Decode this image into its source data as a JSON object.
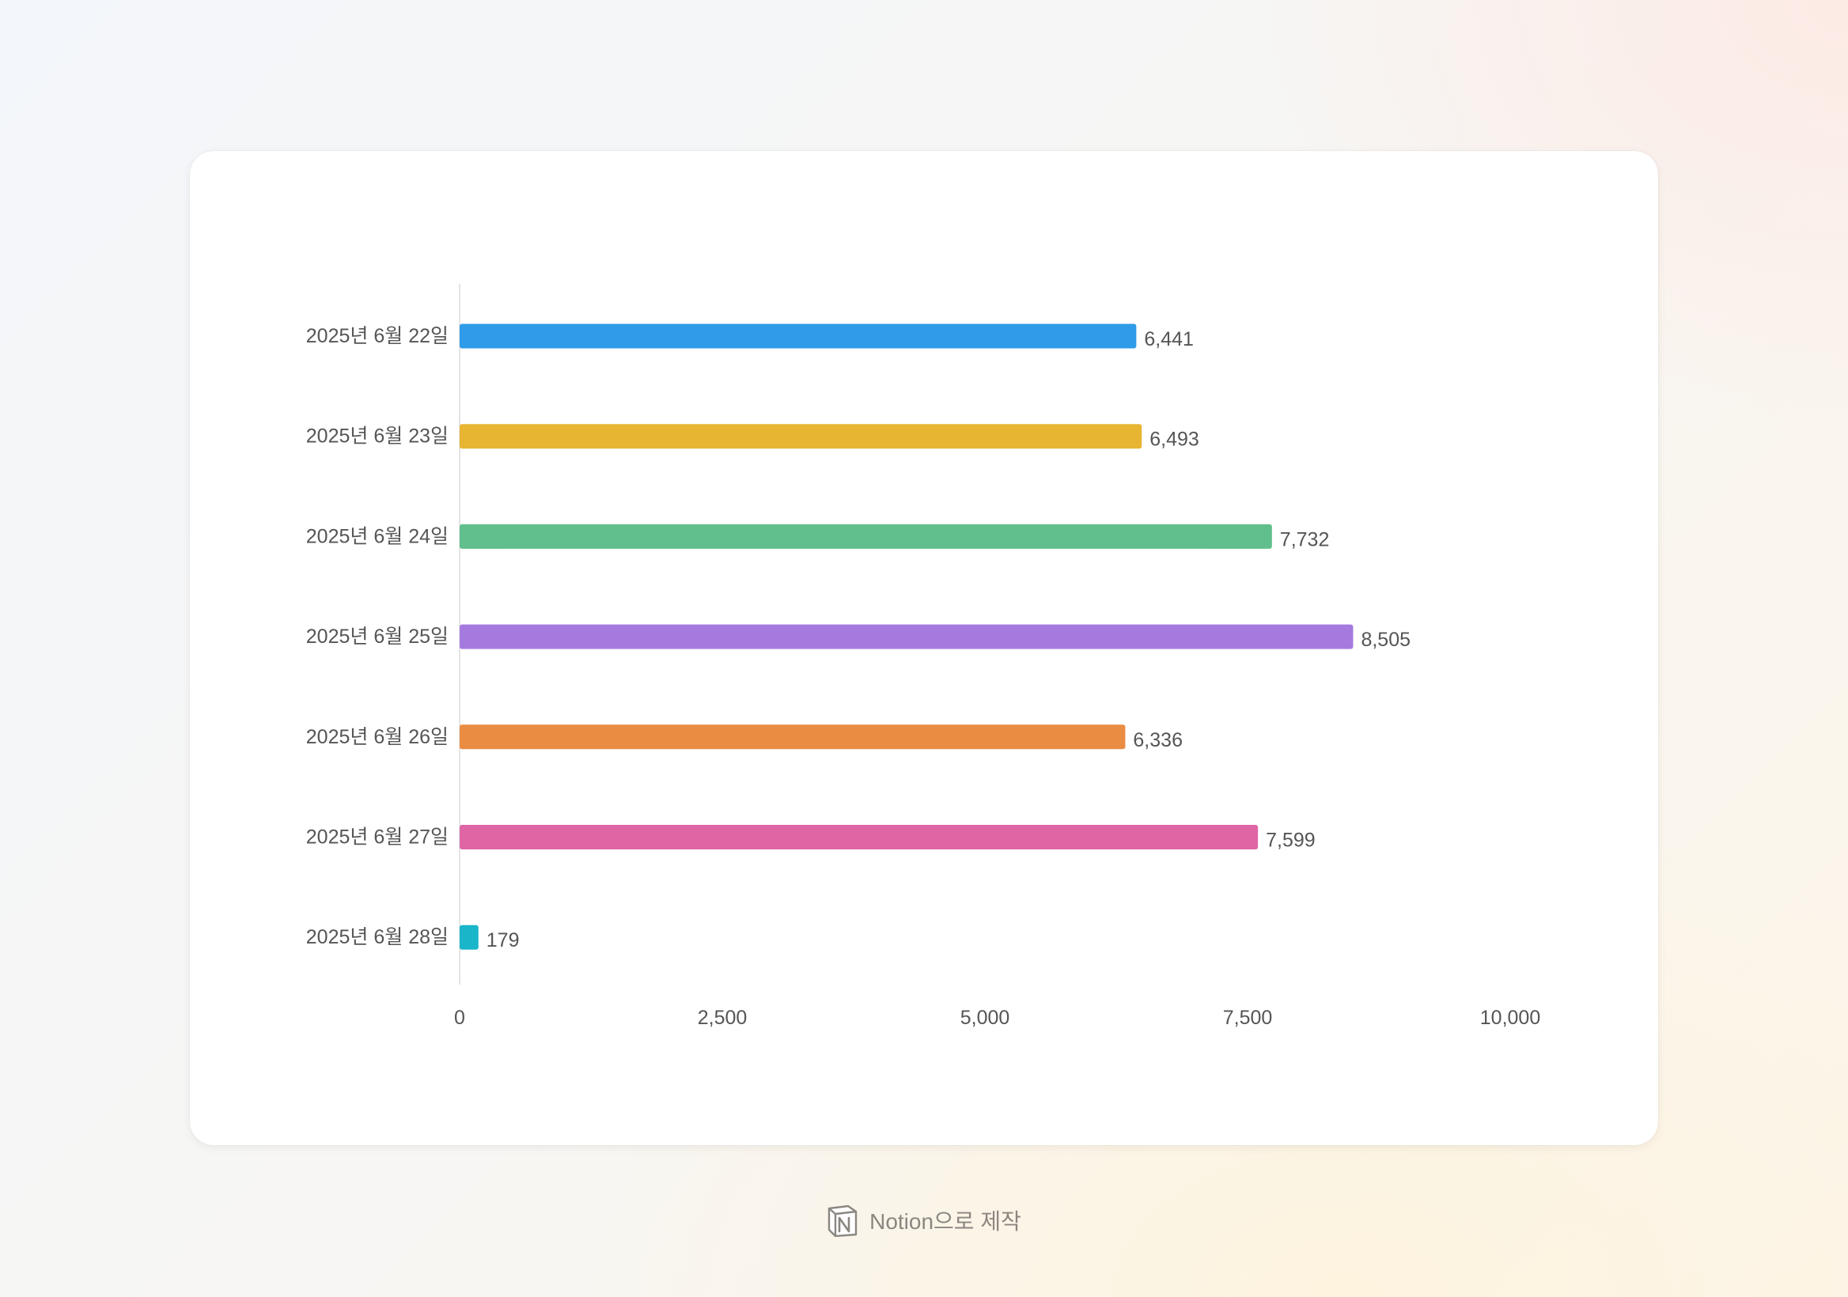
{
  "chart_data": {
    "type": "bar",
    "orientation": "horizontal",
    "categories": [
      "2025년 6월 22일",
      "2025년 6월 23일",
      "2025년 6월 24일",
      "2025년 6월 25일",
      "2025년 6월 26일",
      "2025년 6월 27일",
      "2025년 6월 28일"
    ],
    "values": [
      6441,
      6493,
      7732,
      8505,
      6336,
      7599,
      179
    ],
    "value_labels": [
      "6,441",
      "6,493",
      "7,732",
      "8,505",
      "6,336",
      "7,599",
      "179"
    ],
    "colors": [
      "#2f9be9",
      "#e8b532",
      "#60bf8c",
      "#a57ade",
      "#ea8c42",
      "#df65a5",
      "#1ab5c8"
    ],
    "xlim": [
      0,
      10000
    ],
    "xticks": [
      0,
      2500,
      5000,
      7500,
      10000
    ],
    "xtick_labels": [
      "0",
      "2,500",
      "5,000",
      "7,500",
      "10,000"
    ],
    "grid": false,
    "legend": "none"
  },
  "footer": {
    "icon": "notion-logo-icon",
    "text": "Notion으로 제작"
  }
}
